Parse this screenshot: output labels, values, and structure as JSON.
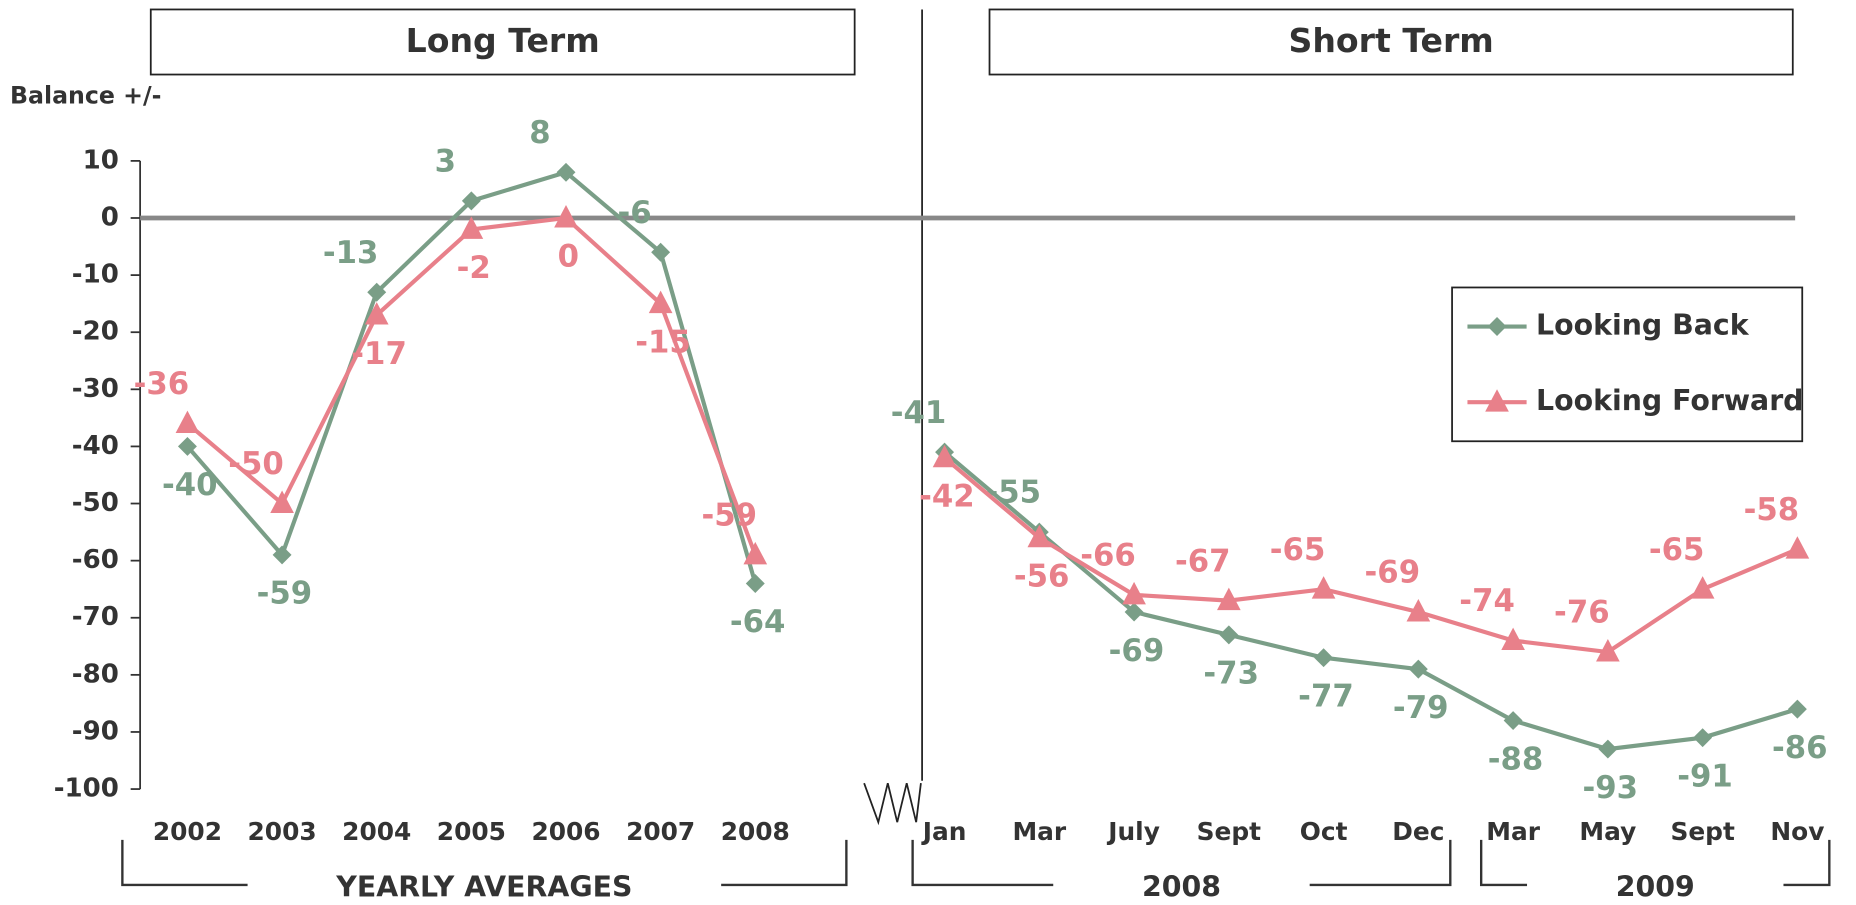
{
  "chart_data": {
    "type": "line",
    "y_label": "Balance +/-",
    "ylim": [
      -100,
      10
    ],
    "yticks": [
      10,
      0,
      -10,
      -20,
      -30,
      -40,
      -50,
      -60,
      -70,
      -80,
      -90,
      -100
    ],
    "panels": [
      {
        "title": "Long Term",
        "groups": [
          {
            "label": "YEARLY AVERAGES",
            "categories": [
              "2002",
              "2003",
              "2004",
              "2005",
              "2006",
              "2007",
              "2008"
            ]
          }
        ]
      },
      {
        "title": "Short Term",
        "groups": [
          {
            "label": "2008",
            "categories": [
              "Jan",
              "Mar",
              "July",
              "Sept",
              "Oct",
              "Dec"
            ]
          },
          {
            "label": "2009",
            "categories": [
              "Mar",
              "May",
              "Sept",
              "Nov"
            ]
          }
        ]
      }
    ],
    "series": [
      {
        "name": "Looking Back",
        "color": "#7a9e87",
        "marker": "diamond",
        "values": [
          [
            -40,
            -59,
            -13,
            3,
            8,
            -6,
            -64
          ],
          [
            -41,
            -55,
            -69,
            -73,
            -77,
            -79,
            -88,
            -93,
            -91,
            -86
          ]
        ]
      },
      {
        "name": "Looking Forward",
        "color": "#e8808a",
        "marker": "triangle",
        "values": [
          [
            -36,
            -50,
            -17,
            -2,
            0,
            -15,
            -59
          ],
          [
            -42,
            -56,
            -66,
            -67,
            -65,
            -69,
            -74,
            -76,
            -65,
            -58
          ]
        ]
      }
    ],
    "legend": "upper right"
  }
}
